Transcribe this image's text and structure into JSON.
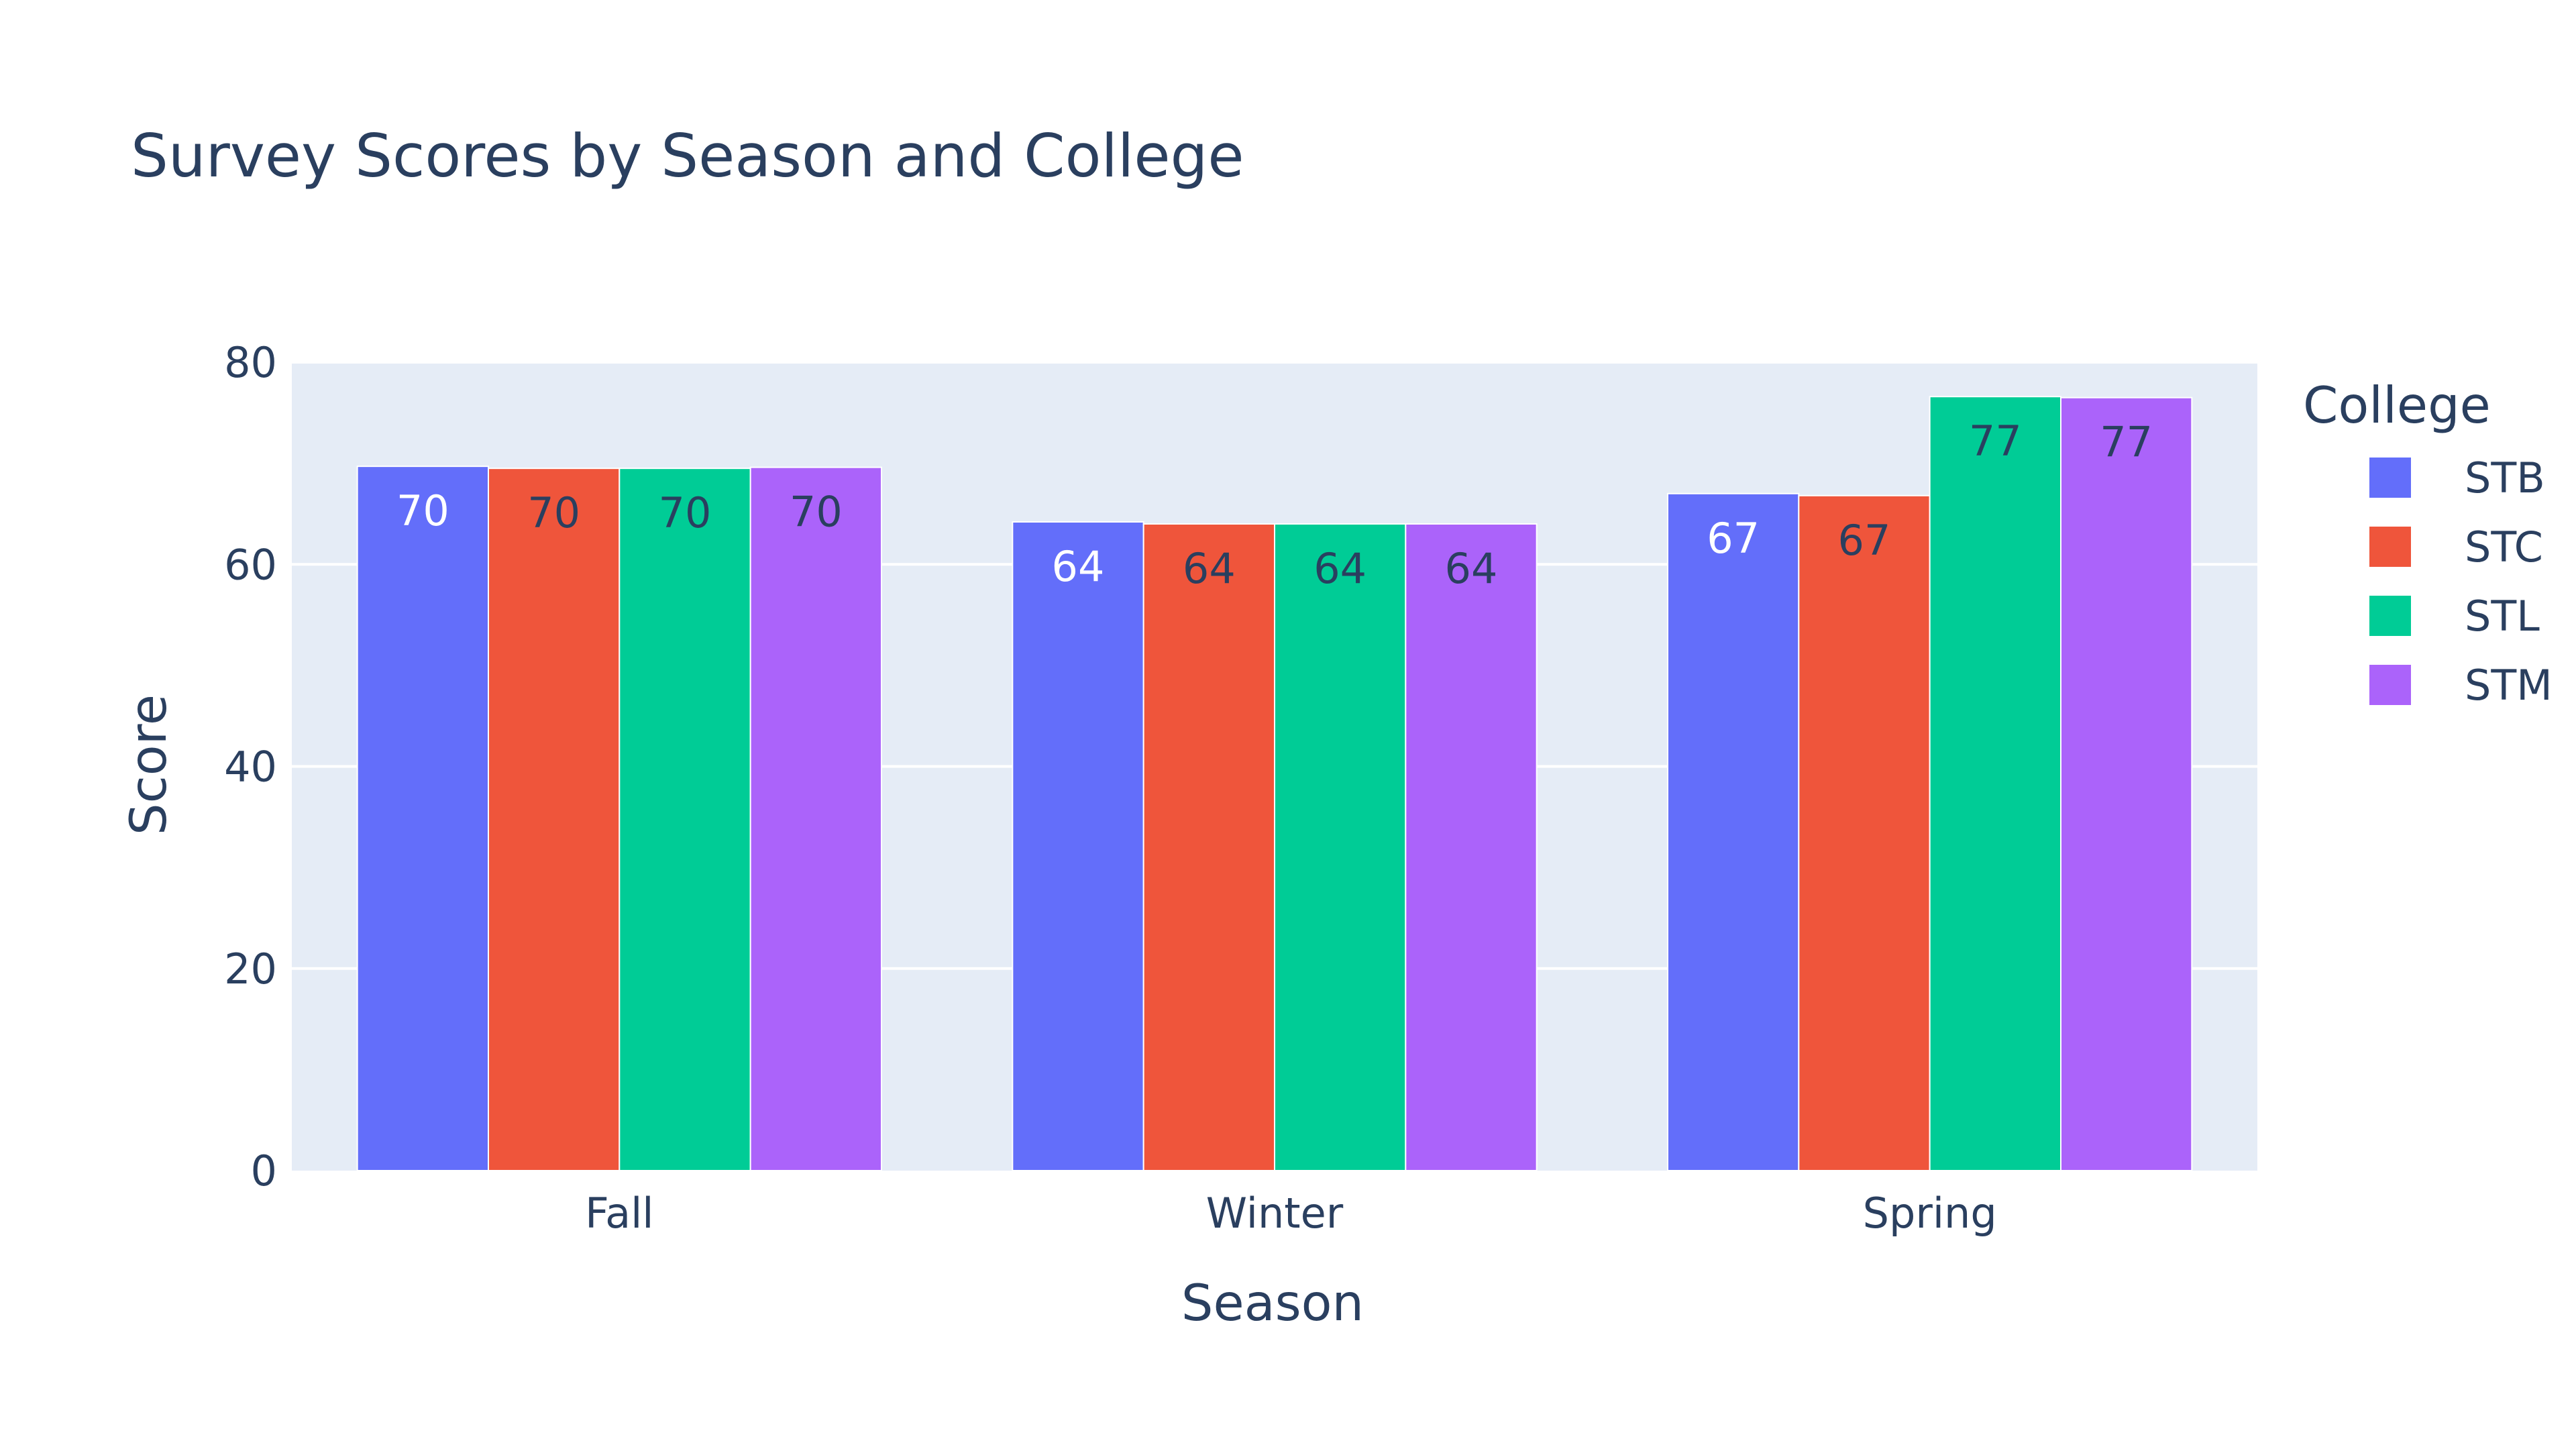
{
  "chart_data": {
    "type": "bar",
    "title": "Survey Scores by Season and College",
    "xlabel": "Season",
    "ylabel": "Score",
    "categories": [
      "Fall",
      "Winter",
      "Spring"
    ],
    "ylim": [
      0,
      80
    ],
    "yticks": [
      0,
      20,
      40,
      60,
      80
    ],
    "grid": true,
    "legend": {
      "title": "College",
      "position": "right"
    },
    "series": [
      {
        "name": "STB",
        "color": "#636efa",
        "values": [
          69.7,
          64.2,
          67.0
        ],
        "labels": [
          "70",
          "64",
          "67"
        ]
      },
      {
        "name": "STC",
        "color": "#ef553b",
        "values": [
          69.5,
          64.0,
          66.8
        ],
        "labels": [
          "70",
          "64",
          "67"
        ]
      },
      {
        "name": "STL",
        "color": "#00cc96",
        "values": [
          69.5,
          64.0,
          76.6
        ],
        "labels": [
          "70",
          "64",
          "77"
        ]
      },
      {
        "name": "STM",
        "color": "#ab63fa",
        "values": [
          69.6,
          64.0,
          76.5
        ],
        "labels": [
          "70",
          "64",
          "77"
        ]
      }
    ],
    "colors": {
      "plot_background": "#e5ecf6",
      "grid": "#ffffff",
      "text": "#2a3f5f",
      "label_light": "#ffffff",
      "label_dark": "#2a3f5f"
    }
  }
}
